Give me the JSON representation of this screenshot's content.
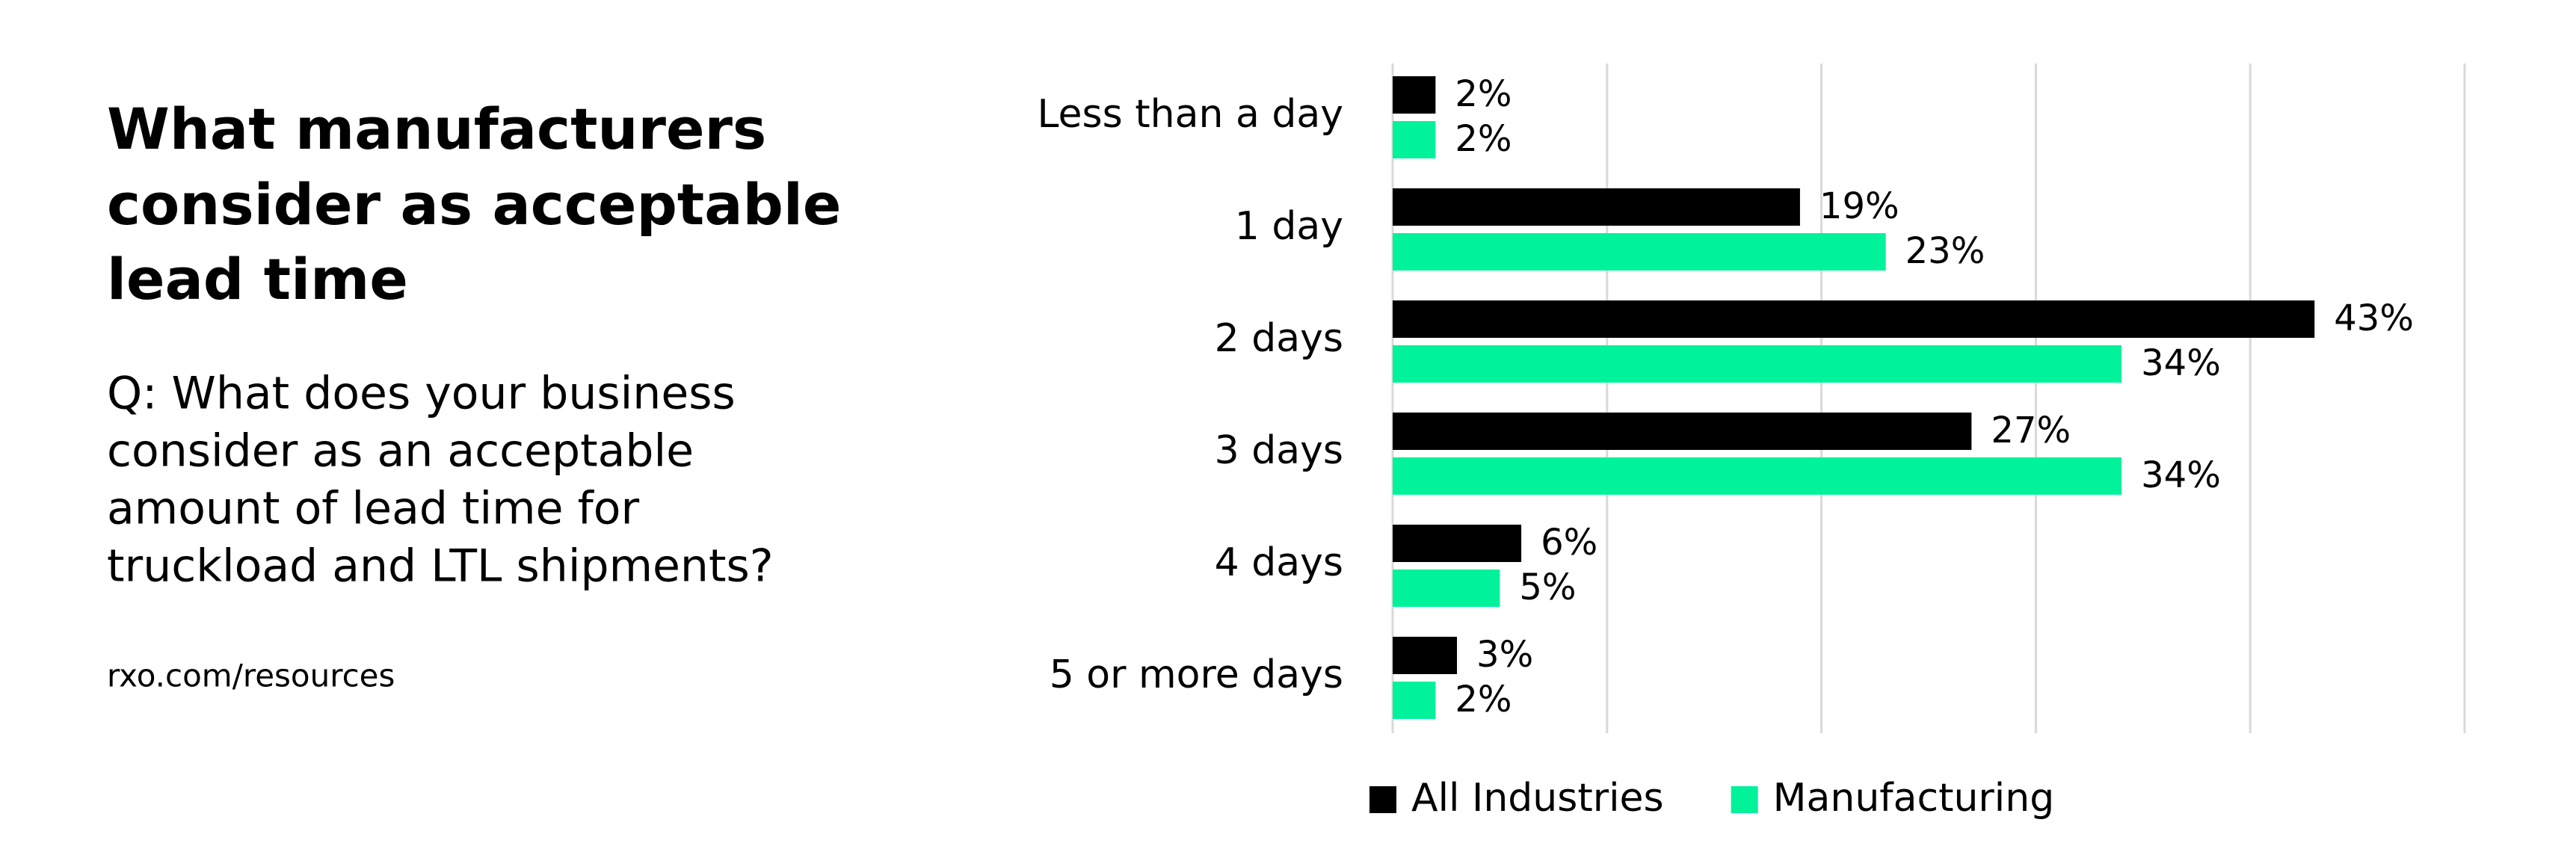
{
  "chart_data": {
    "type": "bar",
    "orientation": "horizontal",
    "title": [
      "What manufacturers",
      "consider as acceptable",
      "lead time"
    ],
    "subtitle": [
      "Q: What does your business",
      "consider as an acceptable",
      "amount of lead time for",
      "truckload and LTL shipments?"
    ],
    "source": "rxo.com/resources",
    "categories": [
      "Less than a day",
      "1 day",
      "2 days",
      "3 days",
      "4 days",
      "5 or more days"
    ],
    "series": [
      {
        "name": "All Industries",
        "color": "#000000",
        "values": [
          2,
          19,
          43,
          27,
          6,
          3
        ],
        "value_labels": [
          "2%",
          "19%",
          "43%",
          "27%",
          "6%",
          "3%"
        ]
      },
      {
        "name": "Manufacturing",
        "color": "#00f29b",
        "values": [
          2,
          23,
          34,
          34,
          5,
          2
        ],
        "value_labels": [
          "2%",
          "23%",
          "34%",
          "34%",
          "5%",
          "2%"
        ]
      }
    ],
    "xlim": [
      0,
      50
    ],
    "xticks": [
      0,
      10,
      20,
      30,
      40,
      50
    ],
    "grid": true,
    "legend": "bottom"
  }
}
